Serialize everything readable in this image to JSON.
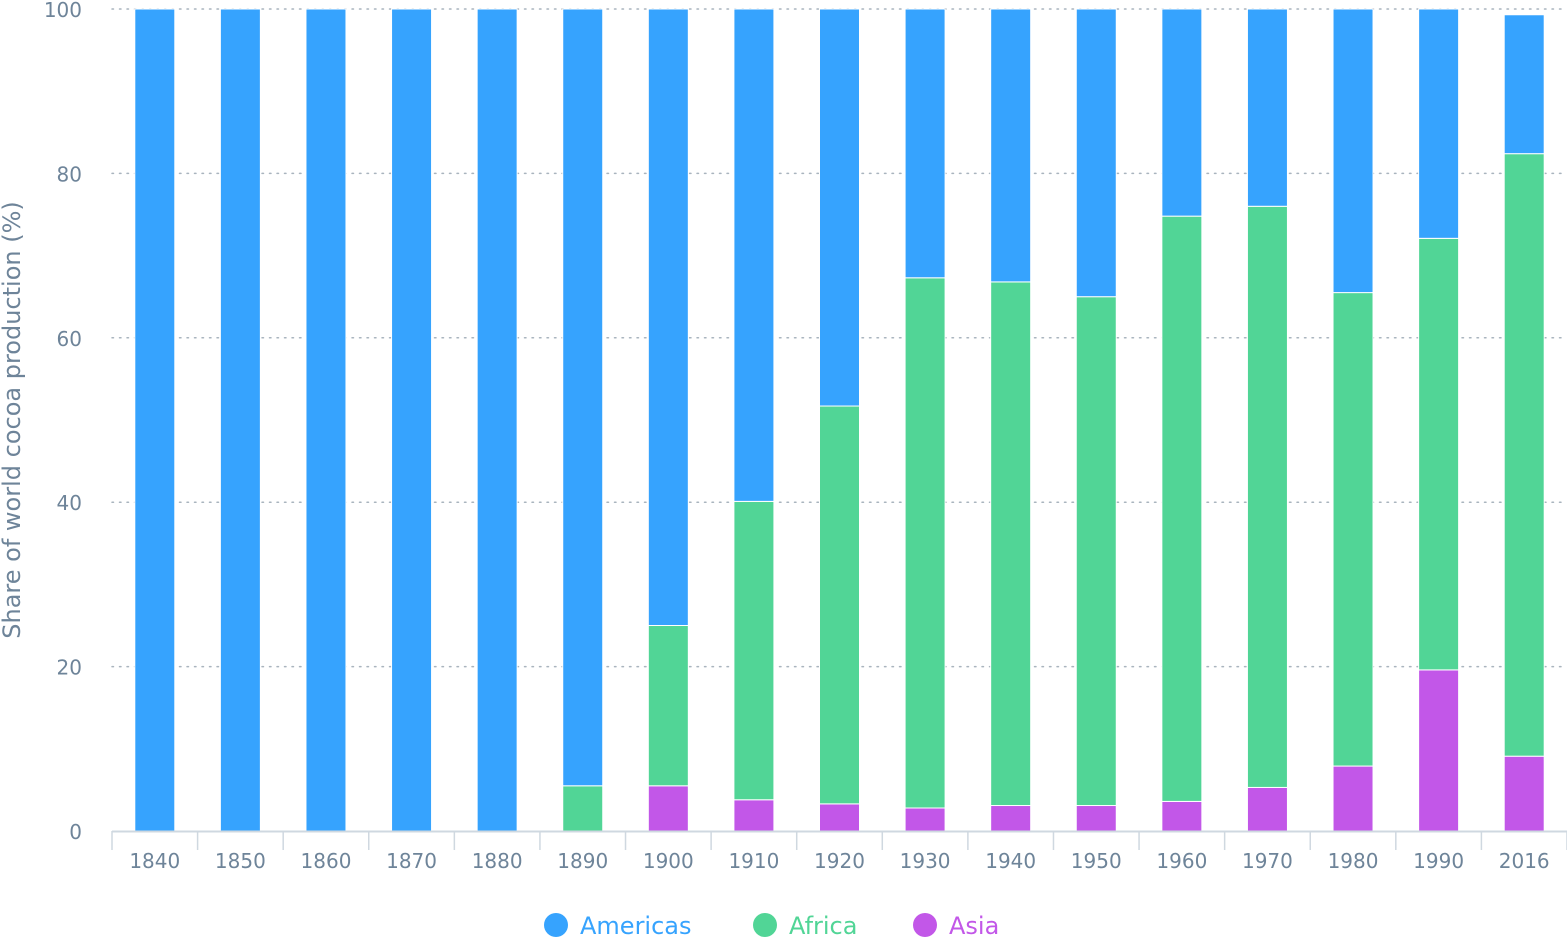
{
  "chart_data": {
    "type": "bar",
    "stacked": true,
    "title": "",
    "xlabel": "",
    "ylabel": "Share of world cocoa production (%)",
    "ylim": [
      0,
      100
    ],
    "yticks": [
      0,
      20,
      40,
      60,
      80,
      100
    ],
    "grid": true,
    "legend_position": "bottom-center",
    "categories": [
      "1840",
      "1850",
      "1860",
      "1870",
      "1880",
      "1890",
      "1900",
      "1910",
      "1920",
      "1930",
      "1940",
      "1950",
      "1960",
      "1970",
      "1980",
      "1990",
      "2016"
    ],
    "series": [
      {
        "name": "Asia",
        "color": "#c257e8",
        "values": [
          0,
          0,
          0,
          0,
          0,
          0,
          5.5,
          3.8,
          3.3,
          2.8,
          3.1,
          3.1,
          3.6,
          5.3,
          7.9,
          19.6,
          9.1
        ]
      },
      {
        "name": "Africa",
        "color": "#51d596",
        "values": [
          0,
          0,
          0,
          0,
          0,
          5.5,
          19.5,
          36.3,
          48.4,
          64.5,
          63.7,
          61.9,
          71.2,
          70.7,
          57.6,
          52.5,
          73.3
        ]
      },
      {
        "name": "Americas",
        "color": "#36a3fe",
        "values": [
          100,
          100,
          100,
          100,
          100,
          94.5,
          75,
          59.9,
          48.3,
          32.7,
          33.2,
          35,
          25.2,
          24,
          34.5,
          27.9,
          16.9
        ]
      }
    ]
  },
  "legend": {
    "items": [
      {
        "label": "Americas",
        "color": "#36a3fe"
      },
      {
        "label": "Africa",
        "color": "#51d596"
      },
      {
        "label": "Asia",
        "color": "#c257e8"
      }
    ]
  },
  "colors": {
    "text": "#6e8499",
    "legend_text": {
      "Americas": "#36a3fe",
      "Africa": "#51d596",
      "Asia": "#c257e8"
    },
    "grid": "#a9b4be",
    "axis": "#cfd8e0"
  }
}
